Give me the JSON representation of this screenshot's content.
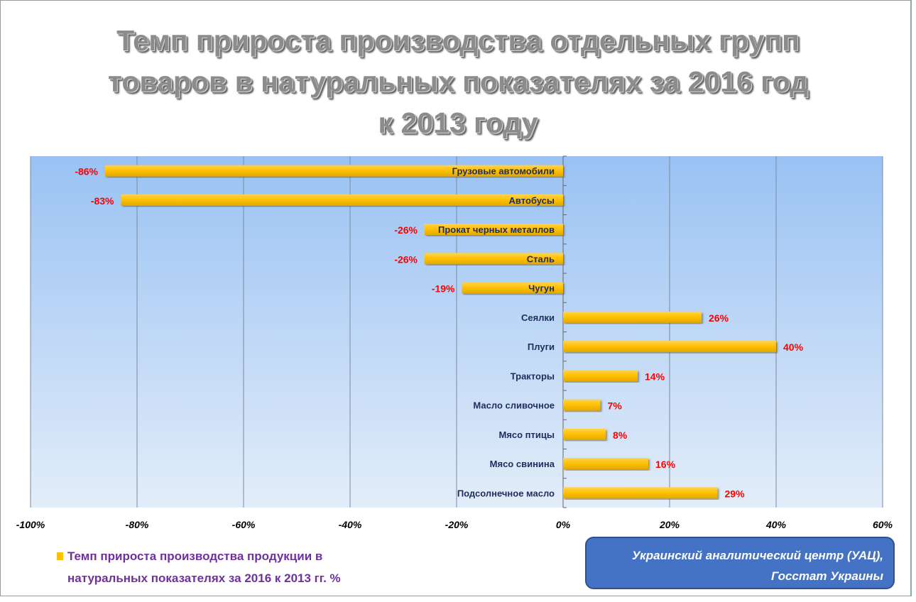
{
  "chart_data": {
    "type": "bar",
    "orientation": "horizontal",
    "title": [
      "Темп прироста производства отдельных групп",
      "товаров в натуральных показателях за 2016 год",
      "к 2013 году"
    ],
    "categories": [
      "Грузовые автомобили",
      "Автобусы",
      "Прокат черных металлов",
      "Сталь",
      "Чугун",
      "Сеялки",
      "Плуги",
      "Тракторы",
      "Масло сливочное",
      "Мясо птицы",
      "Мясо свинина",
      "Подсолнечное масло"
    ],
    "values": [
      -86,
      -83,
      -26,
      -26,
      -19,
      26,
      40,
      14,
      7,
      8,
      16,
      29
    ],
    "value_labels": [
      "-86%",
      "-83%",
      "-26%",
      "-26%",
      "-19%",
      "26%",
      "40%",
      "14%",
      "7%",
      "8%",
      "16%",
      "29%"
    ],
    "xlim": [
      -100,
      60
    ],
    "xticks": [
      -100,
      -80,
      -60,
      -40,
      -20,
      0,
      20,
      40,
      60
    ],
    "xtick_labels": [
      "-100%",
      "-80%",
      "-60%",
      "-40%",
      "-20%",
      "0%",
      "20%",
      "40%",
      "60%"
    ],
    "grid": "vertical",
    "legend": {
      "placement": "bottom-left",
      "entries": [
        "Темп прироста производства продукции в",
        "натуральных показателях за 2016 к 2013 гг. %"
      ]
    },
    "colors": {
      "bar": "#ffc000",
      "value_label": "#ff0000",
      "category_label": "#1f2d5c",
      "plot_top": "#99c2f3",
      "plot_bottom": "#e3edf9"
    }
  },
  "source": {
    "line1": "Украинский аналитический  центр (УАЦ),",
    "line2": "Госстат Украины"
  }
}
